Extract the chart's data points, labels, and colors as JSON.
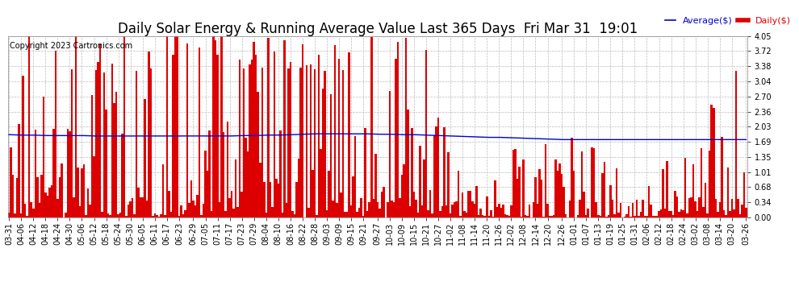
{
  "title": "Daily Solar Energy & Running Average Value Last 365 Days  Fri Mar 31  19:01",
  "copyright": "Copyright 2023 Cartronics.com",
  "legend_average": "Average($)",
  "legend_daily": "Daily($)",
  "bar_color": "#dd0000",
  "avg_color": "#0000cc",
  "background_color": "#ffffff",
  "plot_bg_color": "#ffffff",
  "grid_color": "#bbbbbb",
  "ylim": [
    0.0,
    4.05
  ],
  "yticks": [
    0.0,
    0.34,
    0.68,
    1.01,
    1.35,
    1.69,
    2.03,
    2.36,
    2.7,
    3.04,
    3.38,
    3.72,
    4.05
  ],
  "title_fontsize": 12,
  "copyright_fontsize": 7,
  "tick_fontsize": 7,
  "legend_fontsize": 8,
  "dates": [
    "03-31",
    "04-06",
    "04-12",
    "04-18",
    "04-24",
    "04-30",
    "05-06",
    "05-12",
    "05-18",
    "05-24",
    "05-30",
    "06-05",
    "06-11",
    "06-17",
    "06-23",
    "06-29",
    "07-05",
    "07-11",
    "07-17",
    "07-23",
    "07-29",
    "08-04",
    "08-10",
    "08-16",
    "08-22",
    "08-28",
    "09-03",
    "09-09",
    "09-15",
    "09-21",
    "09-27",
    "10-03",
    "10-09",
    "10-15",
    "10-21",
    "10-27",
    "11-02",
    "11-08",
    "11-14",
    "11-20",
    "11-26",
    "12-02",
    "12-08",
    "12-14",
    "12-20",
    "12-26",
    "01-01",
    "01-07",
    "01-13",
    "01-19",
    "01-25",
    "01-31",
    "02-06",
    "02-12",
    "02-18",
    "02-24",
    "03-02",
    "03-08",
    "03-14",
    "03-20",
    "03-26"
  ],
  "avg_values": [
    1.85,
    1.84,
    1.84,
    1.83,
    1.83,
    1.83,
    1.83,
    1.82,
    1.82,
    1.82,
    1.82,
    1.82,
    1.82,
    1.82,
    1.82,
    1.82,
    1.82,
    1.82,
    1.82,
    1.83,
    1.83,
    1.84,
    1.84,
    1.85,
    1.86,
    1.87,
    1.87,
    1.87,
    1.87,
    1.87,
    1.86,
    1.86,
    1.85,
    1.85,
    1.84,
    1.83,
    1.82,
    1.81,
    1.8,
    1.79,
    1.79,
    1.78,
    1.77,
    1.76,
    1.75,
    1.74,
    1.74,
    1.74,
    1.74,
    1.74,
    1.74,
    1.74,
    1.74,
    1.74,
    1.74,
    1.74,
    1.74,
    1.74,
    1.74,
    1.74,
    1.74
  ]
}
